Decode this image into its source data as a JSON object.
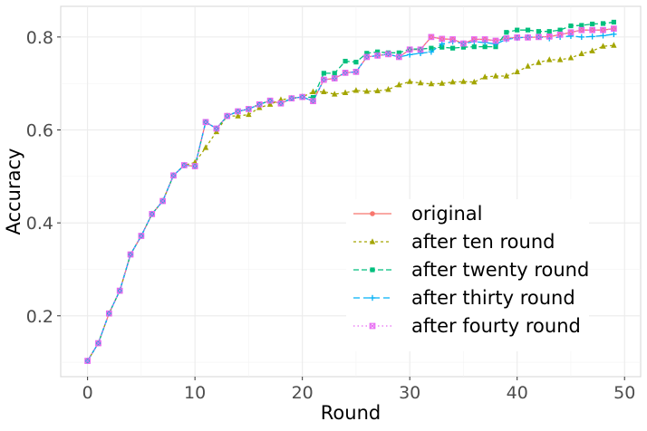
{
  "chart_data": {
    "type": "line",
    "title": "",
    "xlabel": "Round",
    "ylabel": "Accuracy",
    "xlim": [
      -2.5,
      51.5
    ],
    "ylim": [
      0.069,
      0.866
    ],
    "x_ticks": [
      0,
      10,
      20,
      30,
      40,
      50
    ],
    "y_ticks": [
      0.2,
      0.4,
      0.6,
      0.8
    ],
    "x_tick_labels": [
      "0",
      "10",
      "20",
      "30",
      "40",
      "50"
    ],
    "y_tick_labels": [
      "0.2",
      "0.4",
      "0.6",
      "0.8"
    ],
    "grid": true,
    "legend_position": "bottom-right",
    "x": [
      0,
      1,
      2,
      3,
      4,
      5,
      6,
      7,
      8,
      9,
      10,
      11,
      12,
      13,
      14,
      15,
      16,
      17,
      18,
      19,
      20,
      21,
      22,
      23,
      24,
      25,
      26,
      27,
      28,
      29,
      30,
      31,
      32,
      33,
      34,
      35,
      36,
      37,
      38,
      39,
      40,
      41,
      42,
      43,
      44,
      45,
      46,
      47,
      48,
      49
    ],
    "series": [
      {
        "name": "original",
        "color": "#F8766D",
        "marker": "circle",
        "dash": "",
        "values": [
          0.103,
          0.141,
          0.205,
          0.254,
          0.332,
          0.372,
          0.419,
          0.447,
          0.502,
          0.524,
          0.522,
          0.617,
          0.603,
          0.63,
          0.64,
          0.645,
          0.655,
          0.663,
          0.657,
          0.668,
          0.671,
          0.662,
          0.708,
          0.711,
          0.723,
          0.725,
          0.757,
          0.76,
          0.763,
          0.757,
          0.773,
          0.773,
          0.8,
          0.796,
          0.795,
          0.786,
          0.795,
          0.795,
          0.792,
          0.797,
          0.799,
          0.799,
          0.8,
          0.801,
          0.805,
          0.81,
          0.815,
          0.815,
          0.815,
          0.818
        ]
      },
      {
        "name": "after ten round",
        "color": "#A3A500",
        "marker": "triangle",
        "dash": "3,3",
        "values": [
          0.103,
          0.141,
          0.205,
          0.254,
          0.332,
          0.372,
          0.419,
          0.447,
          0.502,
          0.524,
          0.53,
          0.562,
          0.596,
          0.63,
          0.63,
          0.633,
          0.648,
          0.655,
          0.665,
          0.668,
          0.671,
          0.682,
          0.682,
          0.677,
          0.68,
          0.685,
          0.683,
          0.684,
          0.687,
          0.697,
          0.704,
          0.701,
          0.699,
          0.7,
          0.703,
          0.704,
          0.703,
          0.714,
          0.716,
          0.716,
          0.725,
          0.737,
          0.745,
          0.751,
          0.751,
          0.755,
          0.764,
          0.77,
          0.78,
          0.782
        ]
      },
      {
        "name": "after twenty round",
        "color": "#00BF7D",
        "marker": "square",
        "dash": "6,3",
        "values": [
          0.103,
          0.141,
          0.205,
          0.254,
          0.332,
          0.372,
          0.419,
          0.447,
          0.502,
          0.524,
          0.522,
          0.617,
          0.603,
          0.63,
          0.64,
          0.645,
          0.655,
          0.663,
          0.657,
          0.668,
          0.671,
          0.67,
          0.722,
          0.722,
          0.748,
          0.746,
          0.765,
          0.768,
          0.766,
          0.766,
          0.774,
          0.774,
          0.776,
          0.778,
          0.776,
          0.778,
          0.779,
          0.779,
          0.779,
          0.81,
          0.815,
          0.815,
          0.812,
          0.812,
          0.815,
          0.824,
          0.825,
          0.828,
          0.829,
          0.832
        ]
      },
      {
        "name": "after thirty round",
        "color": "#00B0F6",
        "marker": "plus",
        "dash": "7,4",
        "values": [
          0.103,
          0.141,
          0.205,
          0.254,
          0.332,
          0.372,
          0.419,
          0.447,
          0.502,
          0.524,
          0.522,
          0.617,
          0.603,
          0.63,
          0.64,
          0.645,
          0.655,
          0.663,
          0.657,
          0.668,
          0.671,
          0.662,
          0.708,
          0.711,
          0.723,
          0.725,
          0.757,
          0.76,
          0.763,
          0.757,
          0.762,
          0.765,
          0.768,
          0.785,
          0.79,
          0.786,
          0.79,
          0.788,
          0.785,
          0.795,
          0.798,
          0.8,
          0.8,
          0.797,
          0.8,
          0.802,
          0.8,
          0.801,
          0.803,
          0.806
        ]
      },
      {
        "name": "after fourty round",
        "color": "#E76BF3",
        "marker": "square-x",
        "dash": "1.5,3",
        "values": [
          0.103,
          0.141,
          0.205,
          0.254,
          0.332,
          0.372,
          0.419,
          0.447,
          0.502,
          0.524,
          0.522,
          0.617,
          0.603,
          0.63,
          0.64,
          0.645,
          0.655,
          0.663,
          0.657,
          0.668,
          0.671,
          0.662,
          0.708,
          0.711,
          0.723,
          0.725,
          0.757,
          0.76,
          0.763,
          0.757,
          0.773,
          0.773,
          0.8,
          0.796,
          0.795,
          0.786,
          0.795,
          0.795,
          0.792,
          0.797,
          0.799,
          0.799,
          0.8,
          0.801,
          0.805,
          0.81,
          0.815,
          0.815,
          0.815,
          0.818
        ]
      }
    ]
  }
}
